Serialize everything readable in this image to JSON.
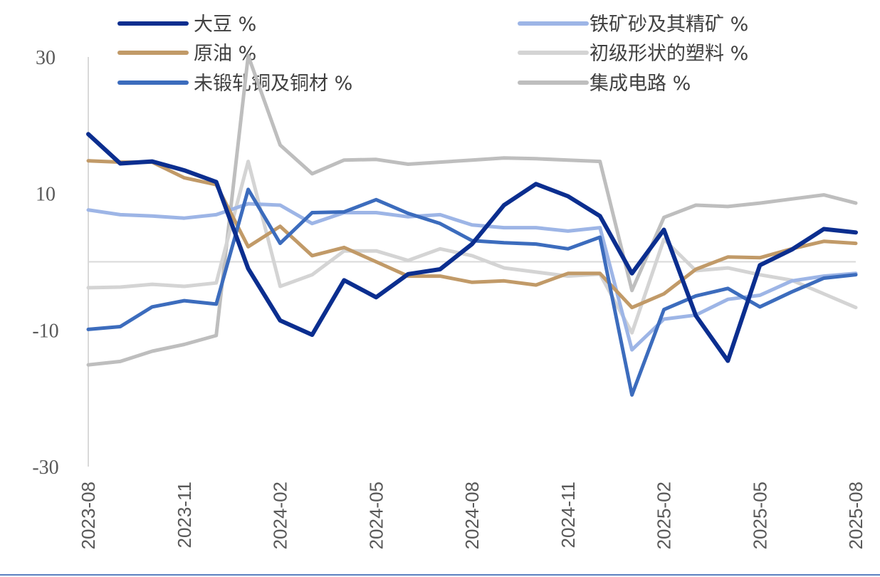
{
  "chart_data": {
    "type": "line",
    "x": [
      "2023-08",
      "2023-09",
      "2023-10",
      "2023-11",
      "2023-12",
      "2024-01",
      "2024-02",
      "2024-03",
      "2024-04",
      "2024-05",
      "2024-06",
      "2024-07",
      "2024-08",
      "2024-09",
      "2024-10",
      "2024-11",
      "2024-12",
      "2025-01",
      "2025-02",
      "2025-03",
      "2025-04",
      "2025-05",
      "2025-06",
      "2025-07",
      "2025-08"
    ],
    "x_tick_labels": [
      "2023-08",
      "2023-11",
      "2024-02",
      "2024-05",
      "2024-08",
      "2024-11",
      "2025-02",
      "2025-05",
      "2025-08"
    ],
    "y_ticks": [
      "30",
      "10",
      "-10",
      "-30"
    ],
    "ylim": [
      -30,
      30
    ],
    "grid": false,
    "zero_line": true,
    "legend_position": "top",
    "series": [
      {
        "name": "大豆 %",
        "color": "#0b2e8f",
        "width": 6,
        "values": [
          18.7,
          14.4,
          14.7,
          13.4,
          11.7,
          -1.0,
          -8.6,
          -10.7,
          -2.7,
          -5.2,
          -1.8,
          -1.1,
          2.6,
          8.3,
          11.4,
          9.6,
          6.7,
          -1.7,
          4.7,
          -7.9,
          -14.5,
          -0.5,
          1.8,
          4.8,
          4.3
        ]
      },
      {
        "name": "铁矿砂及其精矿 %",
        "color": "#9db5e6",
        "width": 5,
        "values": [
          7.6,
          6.9,
          6.7,
          6.4,
          6.9,
          8.5,
          8.3,
          5.6,
          7.2,
          7.2,
          6.6,
          6.9,
          5.4,
          5.0,
          5.0,
          4.5,
          5.0,
          -12.9,
          -8.4,
          -7.8,
          -5.5,
          -4.9,
          -2.8,
          -2.1,
          -1.7
        ]
      },
      {
        "name": "原油 %",
        "color": "#c19a68",
        "width": 5,
        "values": [
          14.8,
          14.6,
          14.6,
          12.3,
          11.3,
          2.2,
          5.2,
          0.9,
          2.1,
          0.0,
          -2.1,
          -2.1,
          -3.0,
          -2.8,
          -3.4,
          -1.7,
          -1.7,
          -6.7,
          -4.7,
          -1.1,
          0.7,
          0.6,
          1.9,
          3.0,
          2.7
        ]
      },
      {
        "name": "初级形状的塑料 %",
        "color": "#d4d4d4",
        "width": 5,
        "values": [
          -3.8,
          -3.7,
          -3.3,
          -3.6,
          -3.1,
          14.7,
          -3.6,
          -1.9,
          1.6,
          1.6,
          0.2,
          1.9,
          0.9,
          -0.9,
          -1.5,
          -2.1,
          -1.8,
          -10.4,
          3.3,
          -1.3,
          -0.9,
          -1.9,
          -2.7,
          -4.7,
          -6.7
        ]
      },
      {
        "name": "未锻轧铜及铜材 %",
        "color": "#3c6cbd",
        "width": 5,
        "values": [
          -9.9,
          -9.5,
          -6.6,
          -5.7,
          -6.2,
          10.6,
          2.7,
          7.2,
          7.3,
          9.1,
          7.1,
          5.6,
          3.1,
          2.8,
          2.6,
          1.9,
          3.6,
          -19.5,
          -7.0,
          -5.0,
          -3.9,
          -6.6,
          -4.4,
          -2.4,
          -1.9
        ]
      },
      {
        "name": "集成电路 %",
        "color": "#bebebe",
        "width": 5,
        "values": [
          -15.1,
          -14.6,
          -13.1,
          -12.1,
          -10.8,
          30.2,
          17.1,
          12.9,
          14.9,
          15.0,
          14.3,
          14.6,
          14.9,
          15.2,
          15.1,
          14.9,
          14.7,
          -4.2,
          6.5,
          8.3,
          8.1,
          8.6,
          9.2,
          9.8,
          8.6
        ]
      }
    ]
  }
}
